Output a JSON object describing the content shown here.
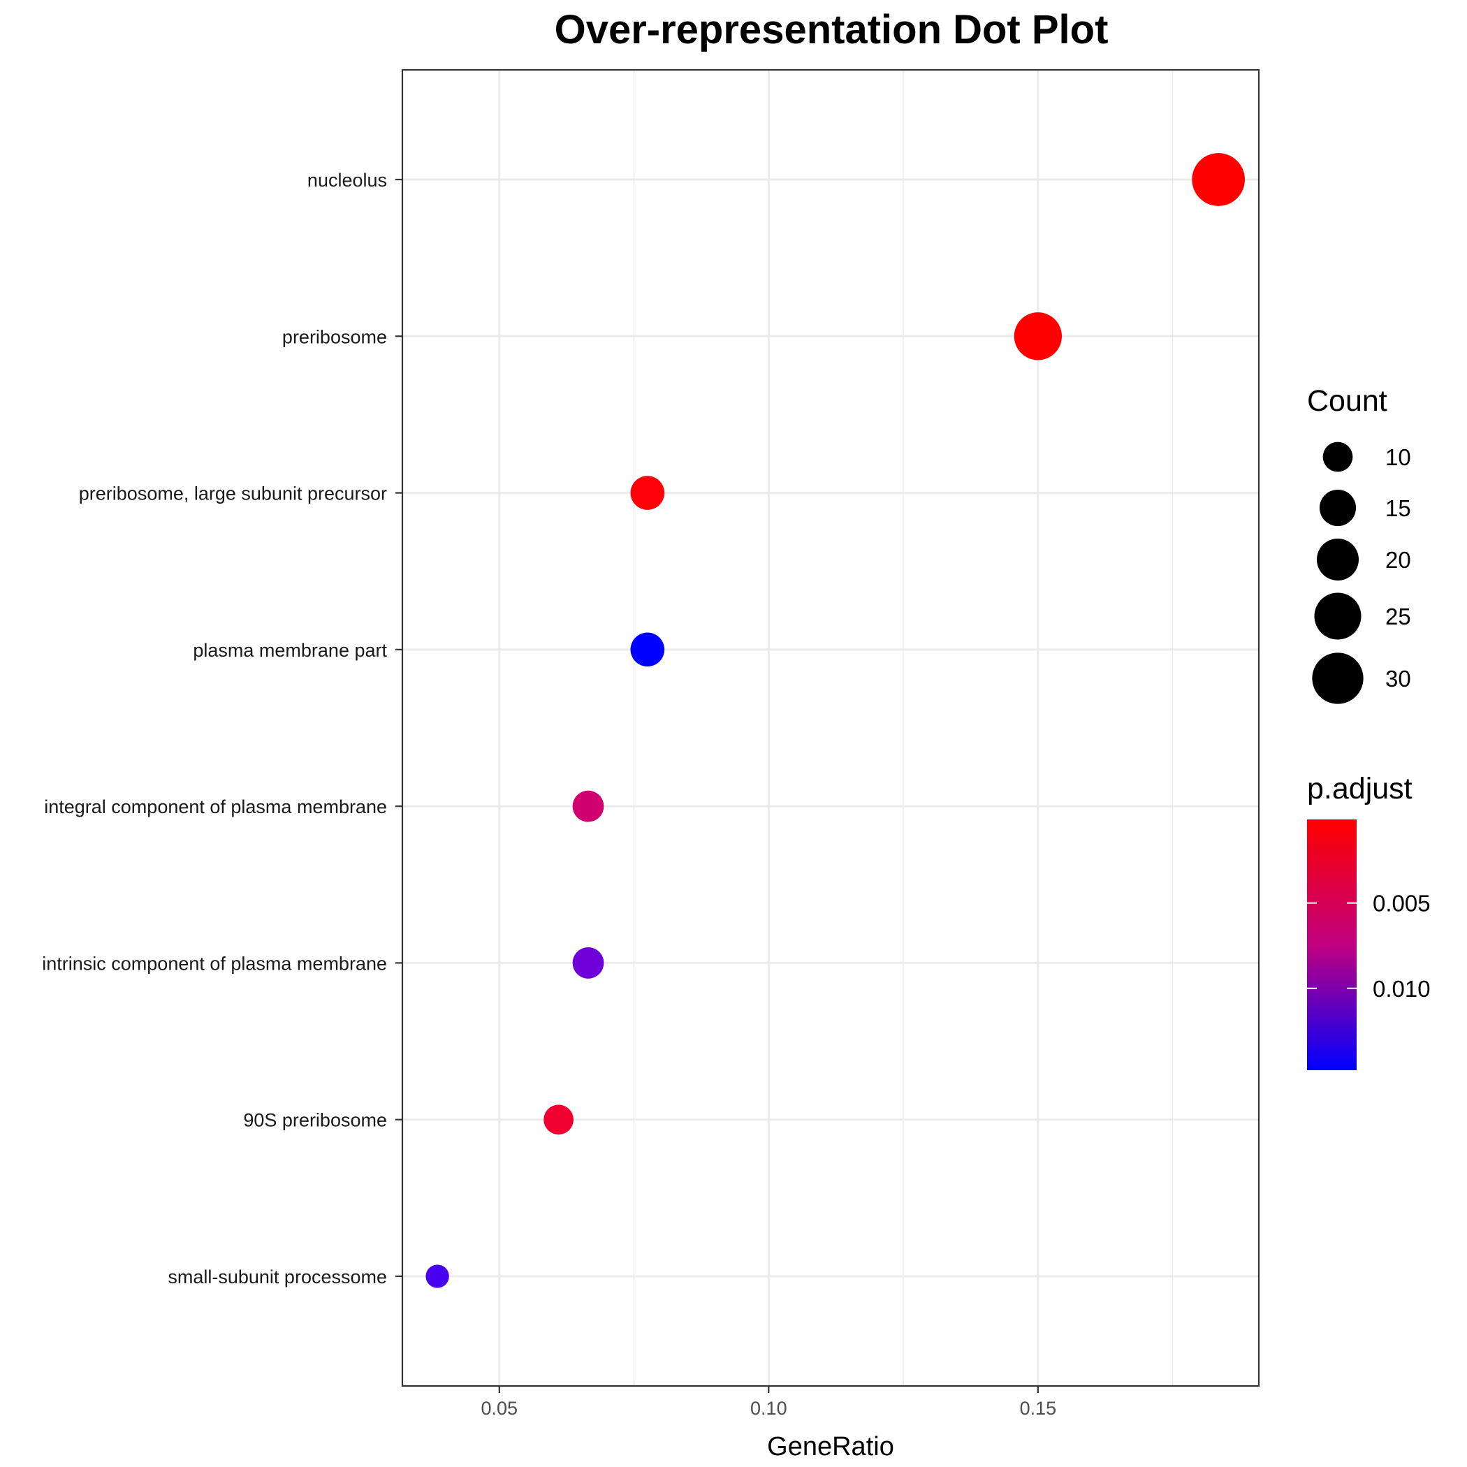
{
  "chart_data": {
    "type": "scatter",
    "title": "Over-representation Dot Plot",
    "xlabel": "GeneRatio",
    "ylabel": "",
    "xlim": [
      0.032,
      0.191
    ],
    "x_ticks": [
      {
        "value": 0.05,
        "label": "0.05"
      },
      {
        "value": 0.1,
        "label": "0.10"
      },
      {
        "value": 0.15,
        "label": "0.15"
      }
    ],
    "x_minor_ticks": [
      0.075,
      0.125,
      0.175
    ],
    "grid": true,
    "points": [
      {
        "term": "nucleolus",
        "gene_ratio": 0.1835,
        "count": 32,
        "p_adjust": 0.0001,
        "color": "#FF0000"
      },
      {
        "term": "preribosome",
        "gene_ratio": 0.15,
        "count": 26,
        "p_adjust": 0.0003,
        "color": "#FF0000"
      },
      {
        "term": "preribosome, large subunit precursor",
        "gene_ratio": 0.0775,
        "count": 13,
        "p_adjust": 0.0007,
        "color": "#FE0007"
      },
      {
        "term": "plasma membrane part",
        "gene_ratio": 0.0775,
        "count": 13,
        "p_adjust": 0.0148,
        "color": "#0000FF"
      },
      {
        "term": "integral component of plasma membrane",
        "gene_ratio": 0.0665,
        "count": 11,
        "p_adjust": 0.0062,
        "color": "#D00070"
      },
      {
        "term": "intrinsic component of plasma membrane",
        "gene_ratio": 0.0665,
        "count": 11,
        "p_adjust": 0.0119,
        "color": "#7000DA"
      },
      {
        "term": "90S preribosome",
        "gene_ratio": 0.061,
        "count": 10,
        "p_adjust": 0.0025,
        "color": "#F00030"
      },
      {
        "term": "small-subunit processome",
        "gene_ratio": 0.0385,
        "count": 6,
        "p_adjust": 0.0135,
        "color": "#4A00F0"
      }
    ],
    "size_legend": {
      "title": "Count",
      "entries": [
        {
          "value": 10,
          "label": "10"
        },
        {
          "value": 15,
          "label": "15"
        },
        {
          "value": 20,
          "label": "20"
        },
        {
          "value": 25,
          "label": "25"
        },
        {
          "value": 30,
          "label": "30"
        }
      ]
    },
    "color_legend": {
      "title": "p.adjust",
      "range": [
        0.0001,
        0.0148
      ],
      "low_color": "#FF0000",
      "high_color": "#0000FF",
      "ticks": [
        {
          "value": 0.005,
          "label": "0.005"
        },
        {
          "value": 0.01,
          "label": "0.010"
        }
      ]
    }
  }
}
